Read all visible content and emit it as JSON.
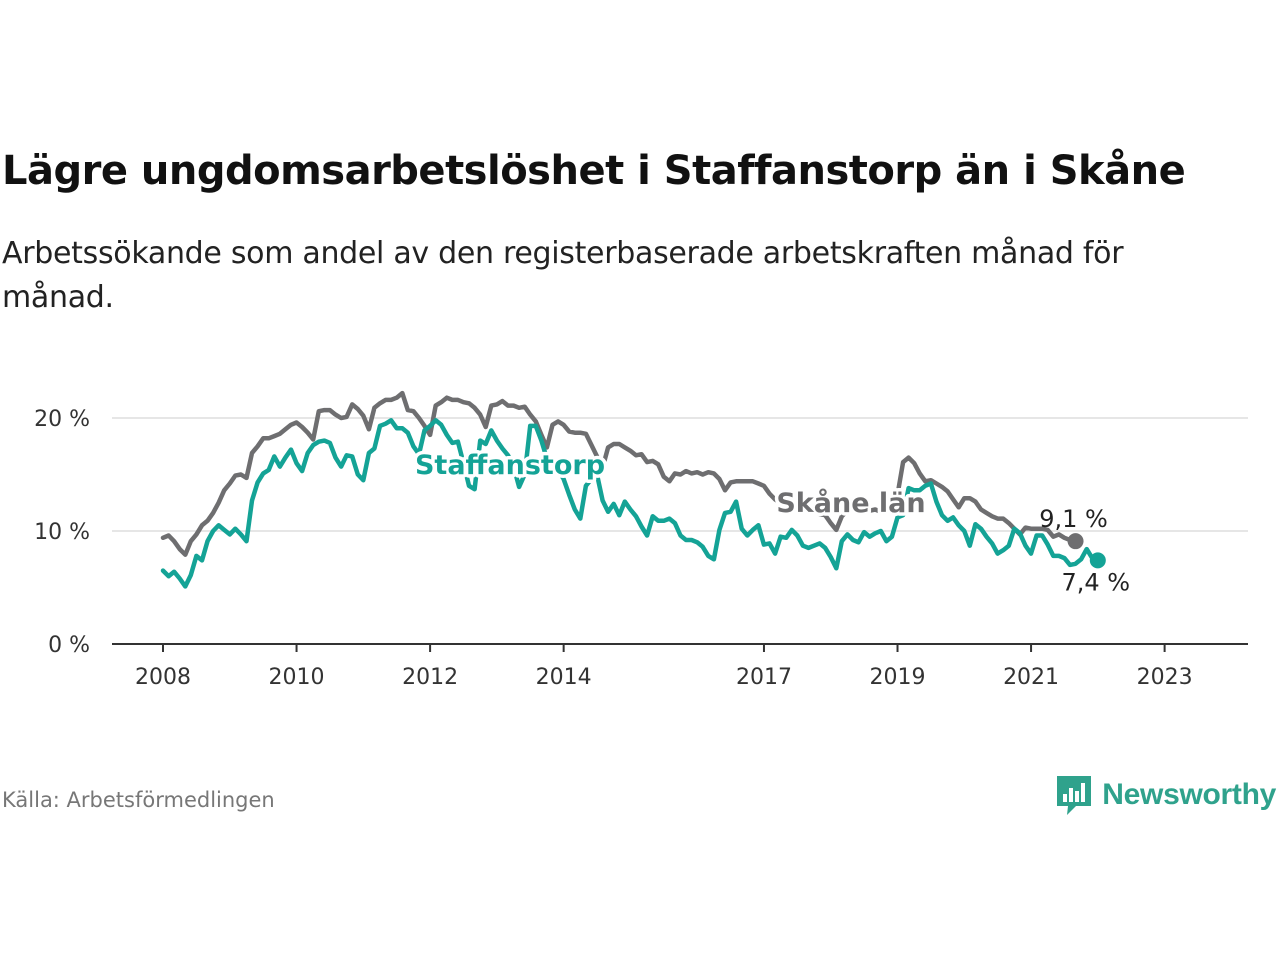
{
  "title": "Lägre ungdomsarbetslöshet i Staffanstorp än i Skåne",
  "subtitle": "Arbetssökande som andel av den registerbaserade arbetskraften månad för månad.",
  "source": "Källa: Arbetsförmedlingen",
  "brand": "Newsworthy",
  "colors": {
    "staffanstorp": "#14a396",
    "skane": "#6e6e70",
    "grid": "#dddddd",
    "axis": "#333333",
    "brand": "#2fa28c"
  },
  "chart_data": {
    "type": "line",
    "title": "Lägre ungdomsarbetslöshet i Staffanstorp än i Skåne",
    "xlabel": "",
    "ylabel": "",
    "ylim": [
      0,
      20
    ],
    "xlim": [
      2008,
      2023.5
    ],
    "y_ticks": [
      {
        "value": 0,
        "label": "0 %"
      },
      {
        "value": 10,
        "label": "10 %"
      },
      {
        "value": 20,
        "label": "20 %"
      }
    ],
    "x_ticks": [
      {
        "value": 2008,
        "label": "2008"
      },
      {
        "value": 2010,
        "label": "2010"
      },
      {
        "value": 2012,
        "label": "2012"
      },
      {
        "value": 2014,
        "label": "2014"
      },
      {
        "value": 2017,
        "label": "2017"
      },
      {
        "value": 2019,
        "label": "2019"
      },
      {
        "value": 2021,
        "label": "2021"
      },
      {
        "value": 2023,
        "label": "2023"
      }
    ],
    "series": [
      {
        "name": "Skåne län",
        "color": "#6e6e70",
        "end_label": "9,1 %",
        "x_start": 2008,
        "step": 0.08333,
        "values": [
          9.4,
          9.6,
          9.1,
          8.4,
          7.9,
          9.1,
          9.7,
          10.5,
          10.9,
          11.6,
          12.5,
          13.6,
          14.2,
          14.9,
          15.0,
          14.7,
          16.9,
          17.5,
          18.2,
          18.2,
          18.4,
          18.6,
          19.0,
          19.4,
          19.6,
          19.2,
          18.7,
          18.1,
          20.6,
          20.7,
          20.7,
          20.3,
          20.0,
          20.1,
          21.2,
          20.8,
          20.2,
          19.0,
          20.9,
          21.3,
          21.6,
          21.6,
          21.8,
          22.2,
          20.7,
          20.6,
          20.0,
          19.3,
          18.5,
          21.1,
          21.4,
          21.8,
          21.6,
          21.6,
          21.4,
          21.3,
          20.9,
          20.3,
          19.2,
          21.1,
          21.2,
          21.5,
          21.1,
          21.1,
          20.9,
          21.0,
          20.3,
          19.7,
          18.5,
          17.4,
          19.4,
          19.7,
          19.4,
          18.8,
          18.7,
          18.7,
          18.6,
          17.6,
          16.6,
          15.6,
          17.4,
          17.7,
          17.7,
          17.4,
          17.1,
          16.7,
          16.8,
          16.1,
          16.2,
          15.9,
          14.8,
          14.4,
          15.1,
          15.0,
          15.3,
          15.1,
          15.2,
          15.0,
          15.2,
          15.1,
          14.6,
          13.6,
          14.3,
          14.4,
          14.4,
          14.4,
          14.4,
          14.2,
          14.0,
          13.3,
          12.8,
          12.5,
          12.9,
          12.5,
          12.3,
          12.3,
          12.0,
          11.8,
          11.5,
          11.4,
          10.7,
          10.1,
          11.3,
          11.8,
          11.9,
          11.7,
          11.7,
          11.8,
          11.9,
          11.7,
          12.1,
          11.9,
          13.2,
          16.1,
          16.5,
          16.0,
          15.1,
          14.4,
          14.5,
          14.2,
          13.9,
          13.5,
          12.8,
          12.1,
          12.9,
          12.9,
          12.6,
          11.9,
          11.6,
          11.3,
          11.1,
          11.1,
          10.7,
          10.2,
          9.7,
          10.3,
          10.2,
          10.2,
          10.2,
          10.1,
          9.5,
          9.7,
          9.4,
          9.2,
          9.1
        ]
      },
      {
        "name": "Staffanstorp",
        "color": "#14a396",
        "end_label": "7,4 %",
        "x_start": 2008,
        "step": 0.08333,
        "values": [
          6.5,
          6.0,
          6.4,
          5.8,
          5.1,
          6.1,
          7.8,
          7.4,
          9.1,
          10.0,
          10.5,
          10.1,
          9.7,
          10.2,
          9.7,
          9.1,
          12.7,
          14.3,
          15.1,
          15.4,
          16.6,
          15.7,
          16.5,
          17.2,
          16.0,
          15.3,
          16.9,
          17.6,
          17.9,
          18.0,
          17.8,
          16.5,
          15.7,
          16.7,
          16.6,
          15.0,
          14.5,
          16.9,
          17.3,
          19.3,
          19.5,
          19.8,
          19.1,
          19.1,
          18.7,
          17.5,
          16.8,
          18.9,
          19.3,
          19.8,
          19.4,
          18.5,
          17.8,
          17.9,
          16.0,
          14.0,
          13.7,
          18.0,
          17.7,
          18.9,
          18.0,
          17.3,
          16.7,
          15.7,
          13.9,
          15.0,
          19.3,
          19.3,
          18.0,
          16.4,
          16.4,
          15.4,
          14.6,
          13.2,
          11.9,
          11.1,
          14.0,
          14.6,
          15.0,
          12.7,
          11.7,
          12.4,
          11.4,
          12.6,
          11.9,
          11.3,
          10.4,
          9.6,
          11.3,
          10.9,
          10.9,
          11.1,
          10.7,
          9.6,
          9.2,
          9.2,
          9.0,
          8.6,
          7.8,
          7.5,
          10.1,
          11.6,
          11.7,
          12.6,
          10.2,
          9.6,
          10.1,
          10.5,
          8.8,
          8.9,
          8.0,
          9.5,
          9.4,
          10.1,
          9.6,
          8.7,
          8.5,
          8.7,
          8.9,
          8.5,
          7.7,
          6.7,
          9.1,
          9.7,
          9.2,
          9.0,
          9.9,
          9.5,
          9.8,
          10.0,
          9.1,
          9.5,
          11.2,
          11.4,
          13.8,
          13.6,
          13.6,
          14.0,
          14.2,
          12.6,
          11.4,
          10.9,
          11.2,
          10.5,
          10.0,
          8.7,
          10.6,
          10.2,
          9.5,
          8.9,
          8.0,
          8.3,
          8.7,
          10.2,
          9.8,
          8.7,
          8.0,
          9.6,
          9.6,
          8.8,
          7.8,
          7.8,
          7.6,
          7.0,
          7.1,
          7.5,
          8.4,
          7.6,
          7.4
        ]
      }
    ],
    "annotations": [
      {
        "text": "Staffanstorp",
        "series": "Staffanstorp"
      },
      {
        "text": "Skåne län",
        "series": "Skåne län"
      }
    ]
  }
}
